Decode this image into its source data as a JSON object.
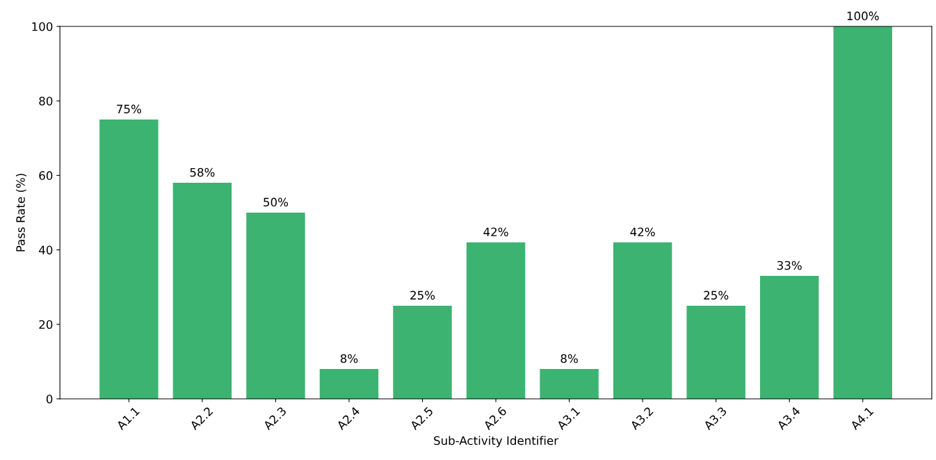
{
  "chart_data": {
    "type": "bar",
    "xlabel": "Sub-Activity Identifier",
    "ylabel": "Pass Rate (%)",
    "categories": [
      "A1.1",
      "A2.2",
      "A2.3",
      "A2.4",
      "A2.5",
      "A2.6",
      "A3.1",
      "A3.2",
      "A3.3",
      "A3.4",
      "A4.1"
    ],
    "values": [
      75,
      58,
      50,
      8,
      25,
      42,
      8,
      42,
      25,
      33,
      100
    ],
    "value_labels": [
      "75%",
      "58%",
      "50%",
      "8%",
      "25%",
      "42%",
      "8%",
      "42%",
      "25%",
      "33%",
      "100%"
    ],
    "color": "#3cb371",
    "ylim": [
      0,
      100
    ],
    "yticks": [
      0,
      20,
      40,
      60,
      80,
      100
    ],
    "grid": false
  }
}
